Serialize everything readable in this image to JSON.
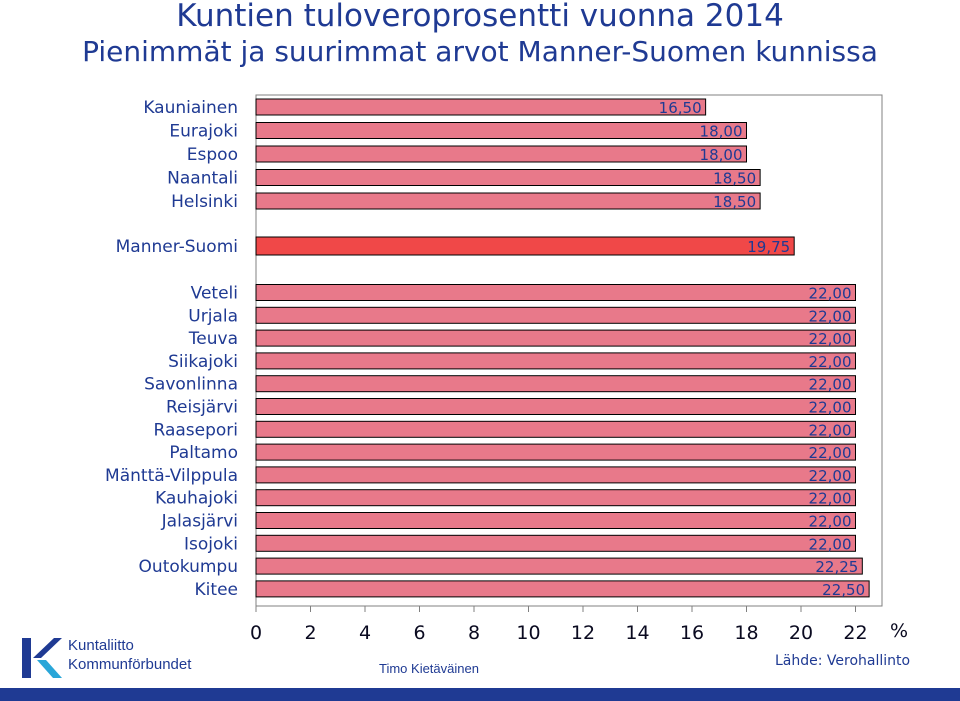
{
  "title_line1": "Kuntien tuloveroprosentti vuonna 2014",
  "title_line2": "Pienimmät ja suurimmat arvot Manner-Suomen kunnissa",
  "chart_data": {
    "type": "bar",
    "orientation": "horizontal",
    "categories": [
      "Kauniainen",
      "Eurajoki",
      "Espoo",
      "Naantali",
      "Helsinki",
      "Manner-Suomi",
      "Veteli",
      "Urjala",
      "Teuva",
      "Siikajoki",
      "Savonlinna",
      "Reisjärvi",
      "Raasepori",
      "Paltamo",
      "Mänttä-Vilppula",
      "Kauhajoki",
      "Jalasjärvi",
      "Isojoki",
      "Outokumpu",
      "Kitee"
    ],
    "values": [
      16.5,
      18.0,
      18.0,
      18.5,
      18.5,
      19.75,
      22.0,
      22.0,
      22.0,
      22.0,
      22.0,
      22.0,
      22.0,
      22.0,
      22.0,
      22.0,
      22.0,
      22.0,
      22.25,
      22.5
    ],
    "value_labels": [
      "16,50",
      "18,00",
      "18,00",
      "18,50",
      "18,50",
      "19,75",
      "22,00",
      "22,00",
      "22,00",
      "22,00",
      "22,00",
      "22,00",
      "22,00",
      "22,00",
      "22,00",
      "22,00",
      "22,00",
      "22,00",
      "22,25",
      "22,50"
    ],
    "xlim": [
      0,
      23
    ],
    "x_ticks": [
      "0",
      "2",
      "4",
      "6",
      "8",
      "10",
      "12",
      "14",
      "16",
      "18",
      "20",
      "22"
    ],
    "x_unit": "%",
    "bar_color": "#e8798a",
    "highlight_color": "#f04848",
    "highlight_category": "Manner-Suomi"
  },
  "logo": {
    "line1": "Kuntaliitto",
    "line2": "Kommunförbundet"
  },
  "author": "Timo Kietäväinen",
  "source": "Lähde: Verohallinto"
}
